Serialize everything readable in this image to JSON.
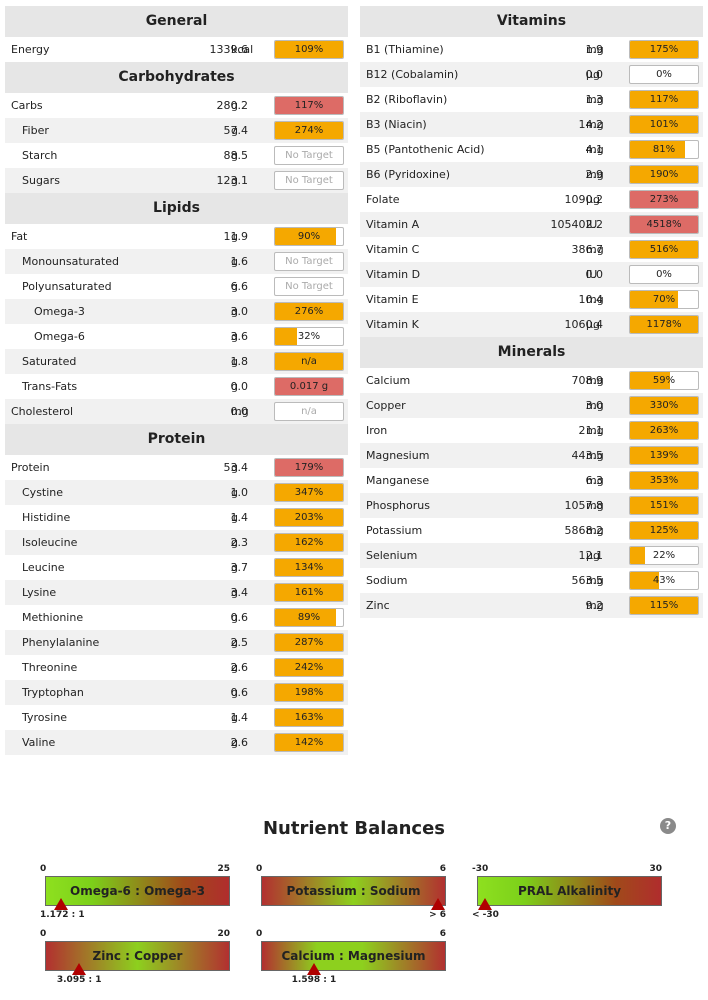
{
  "left_sections": [
    {
      "title": "General",
      "rows": [
        {
          "name": "Energy",
          "amount": "1339.6",
          "unit": "kcal",
          "pct": "109%",
          "fill": 1.0,
          "color": "orange",
          "indent": 0
        }
      ]
    },
    {
      "title": "Carbohydrates",
      "rows": [
        {
          "name": "Carbs",
          "amount": "280.2",
          "unit": "g",
          "pct": "117%",
          "fill": 1.0,
          "color": "red",
          "indent": 0
        },
        {
          "name": "Fiber",
          "amount": "57.4",
          "unit": "g",
          "pct": "274%",
          "fill": 1.0,
          "color": "orange",
          "indent": 1
        },
        {
          "name": "Starch",
          "amount": "88.5",
          "unit": "g",
          "pct": "No Target",
          "fill": 0,
          "color": "none",
          "indent": 1
        },
        {
          "name": "Sugars",
          "amount": "123.1",
          "unit": "g",
          "pct": "No Target",
          "fill": 0,
          "color": "none",
          "indent": 1
        }
      ]
    },
    {
      "title": "Lipids",
      "rows": [
        {
          "name": "Fat",
          "amount": "11.9",
          "unit": "g",
          "pct": "90%",
          "fill": 0.9,
          "color": "orange",
          "indent": 0
        },
        {
          "name": "Monounsaturated",
          "amount": "1.6",
          "unit": "g",
          "pct": "No Target",
          "fill": 0,
          "color": "none",
          "indent": 1
        },
        {
          "name": "Polyunsaturated",
          "amount": "6.6",
          "unit": "g",
          "pct": "No Target",
          "fill": 0,
          "color": "none",
          "indent": 1
        },
        {
          "name": "Omega-3",
          "amount": "3.0",
          "unit": "g",
          "pct": "276%",
          "fill": 1.0,
          "color": "orange",
          "indent": 2
        },
        {
          "name": "Omega-6",
          "amount": "3.6",
          "unit": "g",
          "pct": "32%",
          "fill": 0.32,
          "color": "orange",
          "indent": 2
        },
        {
          "name": "Saturated",
          "amount": "1.8",
          "unit": "g",
          "pct": "n/a",
          "fill": 1.0,
          "color": "orange",
          "indent": 1
        },
        {
          "name": "Trans-Fats",
          "amount": "0.0",
          "unit": "g",
          "pct": "0.017 g",
          "fill": 1.0,
          "color": "red",
          "indent": 1
        },
        {
          "name": "Cholesterol",
          "amount": "0.0",
          "unit": "mg",
          "pct": "n/a",
          "fill": 0,
          "color": "none",
          "indent": 0
        }
      ]
    },
    {
      "title": "Protein",
      "rows": [
        {
          "name": "Protein",
          "amount": "53.4",
          "unit": "g",
          "pct": "179%",
          "fill": 1.0,
          "color": "red",
          "indent": 0
        },
        {
          "name": "Cystine",
          "amount": "1.0",
          "unit": "g",
          "pct": "347%",
          "fill": 1.0,
          "color": "orange",
          "indent": 1
        },
        {
          "name": "Histidine",
          "amount": "1.4",
          "unit": "g",
          "pct": "203%",
          "fill": 1.0,
          "color": "orange",
          "indent": 1
        },
        {
          "name": "Isoleucine",
          "amount": "2.3",
          "unit": "g",
          "pct": "162%",
          "fill": 1.0,
          "color": "orange",
          "indent": 1
        },
        {
          "name": "Leucine",
          "amount": "3.7",
          "unit": "g",
          "pct": "134%",
          "fill": 1.0,
          "color": "orange",
          "indent": 1
        },
        {
          "name": "Lysine",
          "amount": "3.4",
          "unit": "g",
          "pct": "161%",
          "fill": 1.0,
          "color": "orange",
          "indent": 1
        },
        {
          "name": "Methionine",
          "amount": "0.6",
          "unit": "g",
          "pct": "89%",
          "fill": 0.89,
          "color": "orange",
          "indent": 1
        },
        {
          "name": "Phenylalanine",
          "amount": "2.5",
          "unit": "g",
          "pct": "287%",
          "fill": 1.0,
          "color": "orange",
          "indent": 1
        },
        {
          "name": "Threonine",
          "amount": "2.6",
          "unit": "g",
          "pct": "242%",
          "fill": 1.0,
          "color": "orange",
          "indent": 1
        },
        {
          "name": "Tryptophan",
          "amount": "0.6",
          "unit": "g",
          "pct": "198%",
          "fill": 1.0,
          "color": "orange",
          "indent": 1
        },
        {
          "name": "Tyrosine",
          "amount": "1.4",
          "unit": "g",
          "pct": "163%",
          "fill": 1.0,
          "color": "orange",
          "indent": 1
        },
        {
          "name": "Valine",
          "amount": "2.6",
          "unit": "g",
          "pct": "142%",
          "fill": 1.0,
          "color": "orange",
          "indent": 1
        }
      ]
    }
  ],
  "right_sections": [
    {
      "title": "Vitamins",
      "rows": [
        {
          "name": "B1 (Thiamine)",
          "amount": "1.9",
          "unit": "mg",
          "pct": "175%",
          "fill": 1.0,
          "color": "orange",
          "indent": 0
        },
        {
          "name": "B12 (Cobalamin)",
          "amount": "0.0",
          "unit": "µg",
          "pct": "0%",
          "fill": 0,
          "color": "orange",
          "indent": 0
        },
        {
          "name": "B2 (Riboflavin)",
          "amount": "1.3",
          "unit": "mg",
          "pct": "117%",
          "fill": 1.0,
          "color": "orange",
          "indent": 0
        },
        {
          "name": "B3 (Niacin)",
          "amount": "14.2",
          "unit": "mg",
          "pct": "101%",
          "fill": 1.0,
          "color": "orange",
          "indent": 0
        },
        {
          "name": "B5 (Pantothenic Acid)",
          "amount": "4.1",
          "unit": "mg",
          "pct": "81%",
          "fill": 0.81,
          "color": "orange",
          "indent": 0
        },
        {
          "name": "B6 (Pyridoxine)",
          "amount": "2.9",
          "unit": "mg",
          "pct": "190%",
          "fill": 1.0,
          "color": "orange",
          "indent": 0
        },
        {
          "name": "Folate",
          "amount": "1090.2",
          "unit": "µg",
          "pct": "273%",
          "fill": 1.0,
          "color": "red",
          "indent": 0
        },
        {
          "name": "Vitamin A",
          "amount": "105402.2",
          "unit": "IU",
          "pct": "4518%",
          "fill": 1.0,
          "color": "red",
          "indent": 0
        },
        {
          "name": "Vitamin C",
          "amount": "386.7",
          "unit": "mg",
          "pct": "516%",
          "fill": 1.0,
          "color": "orange",
          "indent": 0
        },
        {
          "name": "Vitamin D",
          "amount": "0.0",
          "unit": "IU",
          "pct": "0%",
          "fill": 0,
          "color": "orange",
          "indent": 0
        },
        {
          "name": "Vitamin E",
          "amount": "10.4",
          "unit": "mg",
          "pct": "70%",
          "fill": 0.7,
          "color": "orange",
          "indent": 0
        },
        {
          "name": "Vitamin K",
          "amount": "1060.4",
          "unit": "µg",
          "pct": "1178%",
          "fill": 1.0,
          "color": "orange",
          "indent": 0
        }
      ]
    },
    {
      "title": "Minerals",
      "rows": [
        {
          "name": "Calcium",
          "amount": "708.9",
          "unit": "mg",
          "pct": "59%",
          "fill": 0.59,
          "color": "orange",
          "indent": 0
        },
        {
          "name": "Copper",
          "amount": "3.0",
          "unit": "mg",
          "pct": "330%",
          "fill": 1.0,
          "color": "orange",
          "indent": 0
        },
        {
          "name": "Iron",
          "amount": "21.1",
          "unit": "mg",
          "pct": "263%",
          "fill": 1.0,
          "color": "orange",
          "indent": 0
        },
        {
          "name": "Magnesium",
          "amount": "443.5",
          "unit": "mg",
          "pct": "139%",
          "fill": 1.0,
          "color": "orange",
          "indent": 0
        },
        {
          "name": "Manganese",
          "amount": "6.3",
          "unit": "mg",
          "pct": "353%",
          "fill": 1.0,
          "color": "orange",
          "indent": 0
        },
        {
          "name": "Phosphorus",
          "amount": "1057.8",
          "unit": "mg",
          "pct": "151%",
          "fill": 1.0,
          "color": "orange",
          "indent": 0
        },
        {
          "name": "Potassium",
          "amount": "5868.2",
          "unit": "mg",
          "pct": "125%",
          "fill": 1.0,
          "color": "orange",
          "indent": 0
        },
        {
          "name": "Selenium",
          "amount": "12.1",
          "unit": "µg",
          "pct": "22%",
          "fill": 0.22,
          "color": "orange",
          "indent": 0
        },
        {
          "name": "Sodium",
          "amount": "563.5",
          "unit": "mg",
          "pct": "43%",
          "fill": 0.43,
          "color": "orange",
          "indent": 0
        },
        {
          "name": "Zinc",
          "amount": "9.2",
          "unit": "mg",
          "pct": "115%",
          "fill": 1.0,
          "color": "orange",
          "indent": 0
        }
      ]
    }
  ],
  "balances": {
    "title": "Nutrient Balances",
    "help_icon": "?",
    "items": [
      {
        "label": "Omega-6 : Omega-3",
        "min": "0",
        "max": "25",
        "value_text": "1.172 : 1",
        "position": 0.047,
        "gradient": "g-left"
      },
      {
        "label": "Potassium : Sodium",
        "min": "0",
        "max": "6",
        "value_text": "> 6",
        "position": 1.0,
        "gradient": "g-mid"
      },
      {
        "label": "PRAL Alkalinity",
        "min": "-30",
        "max": "30",
        "value_text": "< -30",
        "position": 0.0,
        "gradient": "g-left"
      },
      {
        "label": "Zinc : Copper",
        "min": "0",
        "max": "20",
        "value_text": "3.095 : 1",
        "position": 0.155,
        "gradient": "g-mid"
      },
      {
        "label": "Calcium : Magnesium",
        "min": "0",
        "max": "6",
        "value_text": "1.598 : 1",
        "position": 0.266,
        "gradient": "g-mag"
      }
    ]
  },
  "colors": {
    "orange": "#f5a800",
    "red": "#dd6b66"
  }
}
